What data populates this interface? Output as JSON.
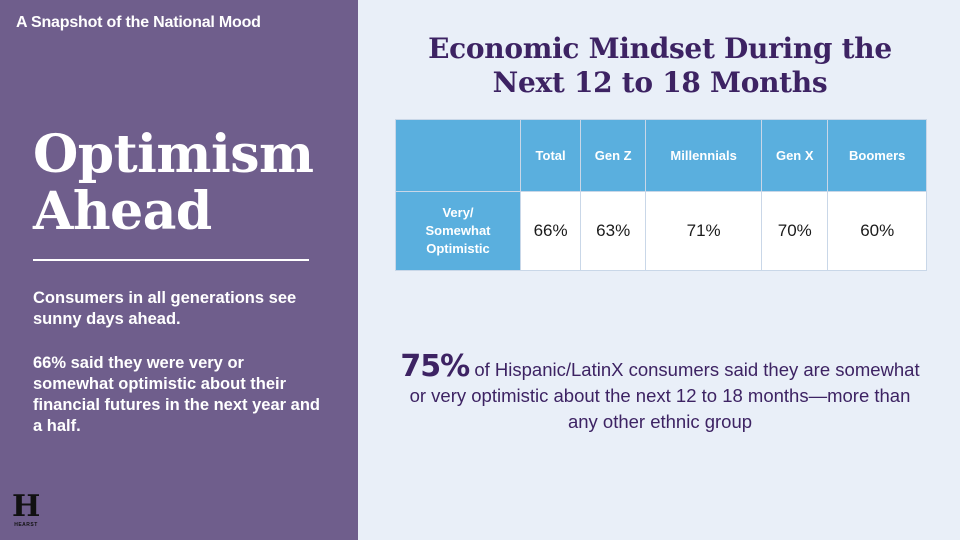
{
  "left": {
    "top_title": "A Snapshot of the National Mood",
    "headline_line1": "Optimism",
    "headline_line2": "Ahead",
    "body1": "Consumers in all generations see sunny days ahead.",
    "body2": "66% said they were very or somewhat optimistic about their financial futures in the next year and a half.",
    "logo": {
      "letter": "H",
      "word": "HEARST"
    }
  },
  "right": {
    "title_line1": "Economic Mindset During the",
    "title_line2": "Next 12 to 18 Months",
    "table": {
      "headers": [
        "",
        "Total",
        "Gen Z",
        "Millennials",
        "Gen X",
        "Boomers"
      ],
      "row_label": "Very/ Somewhat Optimistic",
      "values": [
        "66%",
        "63%",
        "71%",
        "70%",
        "60%"
      ]
    },
    "callout": {
      "percent": "75%",
      "text": " of Hispanic/LatinX consumers said they are somewhat or very optimistic about the next 12 to 18 months—more than any other ethnic group"
    }
  },
  "colors": {
    "left_bg": "#6f5e8c",
    "right_bg": "#e9eff8",
    "table_blue": "#5aafde",
    "title_purple": "#3d2363"
  }
}
